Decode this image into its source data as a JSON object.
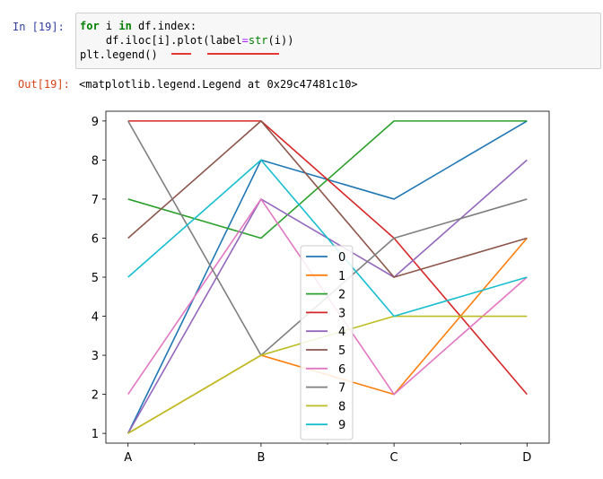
{
  "cell": {
    "in_prompt": "In  [19]:",
    "out_prompt": "Out[19]:",
    "code_lines": {
      "l1_kw": "for",
      "l1_a": " i ",
      "l1_in": "in",
      "l1_b": " df.index:",
      "l2_a": "    df.iloc[i].plot(label",
      "l2_eq": "=",
      "l2_str": "str",
      "l2_b": "(i))",
      "l3": "plt.legend()"
    },
    "output_text": "<matplotlib.legend.Legend at 0x29c47481c10>"
  },
  "chart_data": {
    "type": "line",
    "categories": [
      "A",
      "B",
      "C",
      "D"
    ],
    "ylim": [
      0.75,
      9.25
    ],
    "yticks": [
      1,
      2,
      3,
      4,
      5,
      6,
      7,
      8,
      9
    ],
    "legend_position": "center",
    "series": [
      {
        "name": "0",
        "color": "#1f77b4",
        "values": [
          1,
          8,
          7,
          9
        ]
      },
      {
        "name": "1",
        "color": "#ff7f0e",
        "values": [
          1,
          3,
          2,
          6
        ]
      },
      {
        "name": "2",
        "color": "#2ca02c",
        "values": [
          7,
          6,
          9,
          9
        ]
      },
      {
        "name": "3",
        "color": "#d62728",
        "values": [
          9,
          9,
          6,
          2
        ]
      },
      {
        "name": "4",
        "color": "#9467bd",
        "values": [
          1,
          7,
          5,
          8
        ]
      },
      {
        "name": "5",
        "color": "#8c564b",
        "values": [
          6,
          9,
          5,
          6
        ]
      },
      {
        "name": "6",
        "color": "#e377c2",
        "values": [
          2,
          7,
          2,
          5
        ]
      },
      {
        "name": "7",
        "color": "#7f7f7f",
        "values": [
          9,
          3,
          6,
          7
        ]
      },
      {
        "name": "8",
        "color": "#bcbd22",
        "values": [
          1,
          3,
          4,
          4
        ]
      },
      {
        "name": "9",
        "color": "#17becf",
        "values": [
          5,
          8,
          4,
          5
        ]
      }
    ]
  }
}
